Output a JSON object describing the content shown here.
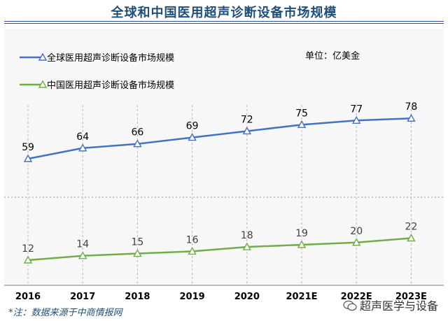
{
  "header": {
    "title": "全球和中国医用超声诊断设备市场规模"
  },
  "unit_label": "单位：亿美金",
  "source_note": "*注：数据来源于中商情报网",
  "watermark_text": "超声医学与设备",
  "colors": {
    "title": "#1f4e79",
    "series_global": "#4472c4",
    "series_china": "#70ad47",
    "rule": "#2f5597"
  },
  "chart_data": {
    "type": "line",
    "x": [
      "2016",
      "2017",
      "2018",
      "2019",
      "2020",
      "2021E",
      "2022E",
      "2023E"
    ],
    "x_tick_labels_shown": [
      "2016",
      "2017",
      "2018",
      "2019",
      "2020",
      "2021E",
      "2022E",
      "2023E"
    ],
    "series": [
      {
        "name": "全球医用超声诊断设备市场规模",
        "values": [
          59,
          64,
          66,
          69,
          72,
          75,
          77,
          78
        ],
        "color": "#4472c4",
        "marker": "triangle"
      },
      {
        "name": "中国医用超声诊断设备市场规模",
        "values": [
          12,
          14,
          15,
          16,
          18,
          19,
          20,
          22
        ],
        "color": "#70ad47",
        "marker": "triangle"
      }
    ],
    "data_labels": true,
    "grid": "vertical dashed",
    "legend": "top-left",
    "axis_break": true
  }
}
